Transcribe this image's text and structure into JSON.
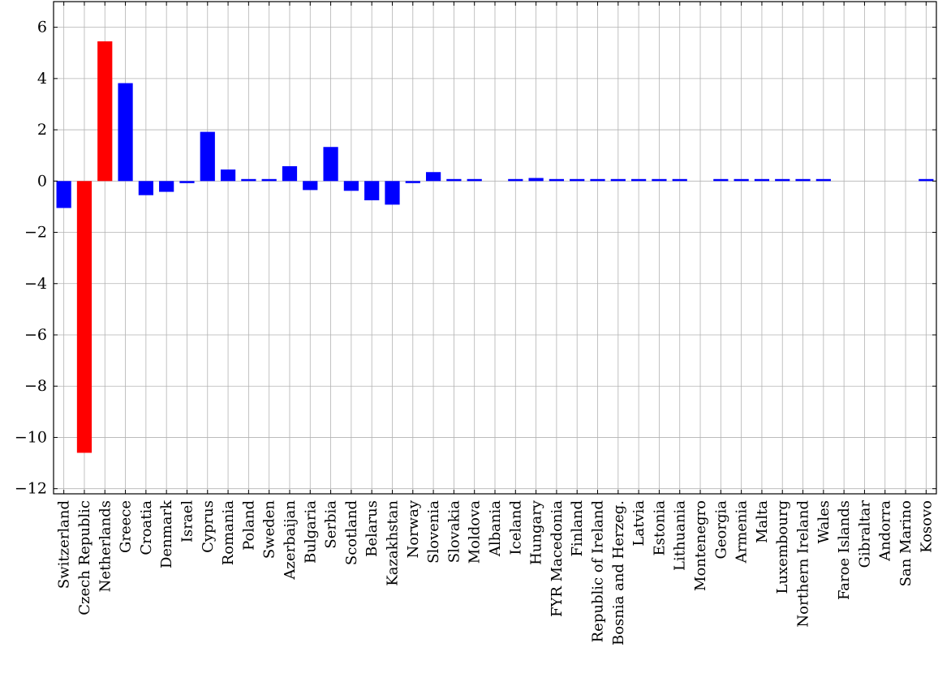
{
  "chart_data": {
    "type": "bar",
    "title": "",
    "xlabel": "",
    "ylabel": "",
    "ylim": [
      -12.2,
      7
    ],
    "yticks": [
      6,
      4,
      2,
      0,
      -2,
      -4,
      -6,
      -8,
      -10,
      -12
    ],
    "ytick_labels": [
      "6",
      "4",
      "2",
      "0",
      "−2",
      "−4",
      "−6",
      "−8",
      "−10",
      "−12"
    ],
    "grid": true,
    "colors": {
      "default": "#0000ff",
      "highlight": "#ff0000",
      "grid": "#b3b3b3",
      "axis": "#000000"
    },
    "categories": [
      "Switzerland",
      "Czech Republic",
      "Netherlands",
      "Greece",
      "Croatia",
      "Denmark",
      "Israel",
      "Cyprus",
      "Romania",
      "Poland",
      "Sweden",
      "Azerbaijan",
      "Bulgaria",
      "Serbia",
      "Scotland",
      "Belarus",
      "Kazakhstan",
      "Norway",
      "Slovenia",
      "Slovakia",
      "Moldova",
      "Albania",
      "Iceland",
      "Hungary",
      "FYR Macedonia",
      "Finland",
      "Republic of Ireland",
      "Bosnia and Herzeg.",
      "Latvia",
      "Estonia",
      "Lithuania",
      "Montenegro",
      "Georgia",
      "Armenia",
      "Malta",
      "Luxembourg",
      "Northern Ireland",
      "Wales",
      "Faroe Islands",
      "Gibraltar",
      "Andorra",
      "San Marino",
      "Kosovo"
    ],
    "values": [
      -1.05,
      -10.6,
      5.45,
      3.82,
      -0.55,
      -0.42,
      -0.08,
      1.92,
      0.45,
      0.04,
      0.04,
      0.58,
      -0.35,
      1.33,
      -0.38,
      -0.75,
      -0.92,
      -0.05,
      0.35,
      0.03,
      0.03,
      0,
      0.04,
      0.12,
      0.04,
      0.04,
      0.04,
      0.04,
      0.04,
      0.04,
      0.04,
      0,
      0.04,
      0.04,
      0.04,
      0.04,
      0.04,
      0.04,
      0,
      0,
      0,
      0,
      0.04
    ],
    "highlighted": [
      "Czech Republic",
      "Netherlands"
    ]
  }
}
